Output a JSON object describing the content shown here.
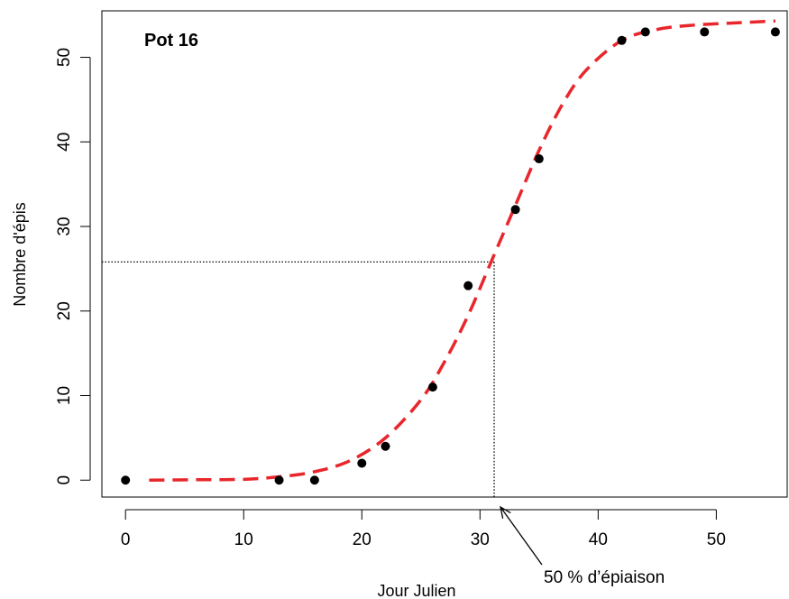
{
  "chart_data": {
    "type": "scatter",
    "title": "Pot 16",
    "xlabel": "Jour Julien",
    "ylabel": "Nombre d'épis",
    "xlim": [
      -2,
      56
    ],
    "ylim": [
      -2,
      55.5
    ],
    "xticks": [
      0,
      10,
      20,
      30,
      40,
      50
    ],
    "yticks": [
      0,
      10,
      20,
      30,
      40,
      50
    ],
    "xtick_labels": [
      "0",
      "10",
      "20",
      "30",
      "40",
      "50"
    ],
    "ytick_labels": [
      "0",
      "10",
      "20",
      "30",
      "40",
      "50"
    ],
    "grid": false,
    "series": [
      {
        "kind": "points",
        "color": "#000000",
        "x": [
          0,
          13,
          16,
          20,
          22,
          26,
          29,
          33,
          35,
          42,
          44,
          49,
          55
        ],
        "y": [
          0,
          0,
          0,
          2,
          4,
          11,
          23,
          32,
          38,
          52,
          53,
          53,
          53
        ]
      },
      {
        "kind": "fitted-curve",
        "style": "dashed",
        "color": "#e8262b",
        "x": [
          2,
          6,
          10,
          13,
          16,
          19,
          22,
          25,
          27,
          29,
          31,
          33,
          35,
          37,
          39,
          42,
          45,
          48,
          52,
          55
        ],
        "y": [
          0,
          0.05,
          0.1,
          0.4,
          1.0,
          2.3,
          5.0,
          9.5,
          14.0,
          19.5,
          26.0,
          32.5,
          39.0,
          44.5,
          48.5,
          52.0,
          53.3,
          53.8,
          54.1,
          54.3
        ]
      }
    ],
    "reference_lines": {
      "x": 31.2,
      "y": 25.8,
      "style": "dotted",
      "color": "#000000"
    },
    "annotation": {
      "text": "50 % d’épiaison",
      "arrow_target": [
        31.2,
        -2
      ]
    }
  }
}
